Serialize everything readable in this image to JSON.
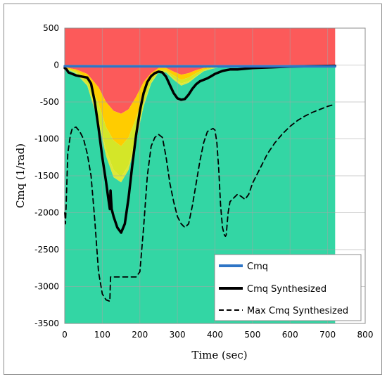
{
  "chart_data": {
    "type": "line",
    "xlabel": "Time (sec)",
    "ylabel": "Cmq (1/rad)",
    "xlim": [
      0,
      800
    ],
    "ylim": [
      -3500,
      500
    ],
    "xticks": [
      0,
      100,
      200,
      300,
      400,
      500,
      600,
      700,
      800
    ],
    "yticks": [
      500,
      0,
      -500,
      -1000,
      -1500,
      -2000,
      -2500,
      -3000,
      -3500
    ],
    "grid": true,
    "legend_position": "bottom-right",
    "background_bands": {
      "x": [
        0,
        10,
        30,
        60,
        90,
        110,
        130,
        150,
        170,
        190,
        210,
        230,
        250,
        270,
        290,
        310,
        330,
        350,
        370,
        390,
        410,
        430,
        450,
        500,
        600,
        720
      ],
      "colors": [
        "#fc5a5a",
        "#ffcc00",
        "#d4e628",
        "#dde83a",
        "#33d6a4"
      ],
      "boundaries": [
        [
          -20,
          -40,
          -60,
          -120,
          -300,
          -500,
          -620,
          -660,
          -600,
          -430,
          -230,
          -110,
          -40,
          -40,
          -90,
          -130,
          -110,
          -70,
          -40,
          -30,
          -20,
          -10,
          -8,
          -5,
          -3,
          -2
        ],
        [
          -25,
          -55,
          -80,
          -180,
          -520,
          -840,
          -1020,
          -1100,
          -980,
          -720,
          -400,
          -170,
          -70,
          -70,
          -140,
          -200,
          -170,
          -110,
          -60,
          -40,
          -25,
          -15,
          -10,
          -6,
          -4,
          -2
        ],
        [
          -30,
          -60,
          -100,
          -250,
          -720,
          -1150,
          -1420,
          -1520,
          -1360,
          -980,
          -540,
          -230,
          -90,
          -90,
          -180,
          -250,
          -220,
          -150,
          -80,
          -50,
          -30,
          -18,
          -12,
          -7,
          -4,
          -2
        ],
        [
          -35,
          -70,
          -115,
          -280,
          -780,
          -1230,
          -1520,
          -1590,
          -1420,
          -1030,
          -560,
          -250,
          -100,
          -100,
          -200,
          -280,
          -240,
          -160,
          -85,
          -55,
          -32,
          -20,
          -14,
          -8,
          -5,
          -3
        ]
      ]
    },
    "series": [
      {
        "name": "Cmq",
        "color": "#2e75c6",
        "style": "solid",
        "x": [
          0,
          100,
          200,
          300,
          400,
          500,
          600,
          720
        ],
        "y": [
          -15,
          -18,
          -18,
          -18,
          -18,
          -18,
          -18,
          -18
        ]
      },
      {
        "name": "Cmq Synthesized",
        "color": "#000000",
        "style": "solid",
        "x": [
          0,
          5,
          10,
          20,
          30,
          40,
          50,
          60,
          70,
          80,
          90,
          100,
          110,
          115,
          120,
          122,
          125,
          130,
          140,
          150,
          160,
          170,
          180,
          190,
          200,
          210,
          220,
          230,
          240,
          250,
          260,
          270,
          280,
          290,
          300,
          310,
          320,
          330,
          340,
          350,
          360,
          370,
          380,
          390,
          400,
          410,
          420,
          430,
          440,
          460,
          480,
          500,
          550,
          600,
          650,
          700,
          720
        ],
        "y": [
          -40,
          -60,
          -100,
          -120,
          -140,
          -150,
          -160,
          -170,
          -250,
          -500,
          -850,
          -1250,
          -1580,
          -1770,
          -1950,
          -1700,
          -1950,
          -2050,
          -2200,
          -2270,
          -2150,
          -1800,
          -1350,
          -950,
          -620,
          -380,
          -230,
          -150,
          -110,
          -90,
          -100,
          -160,
          -270,
          -380,
          -450,
          -470,
          -460,
          -400,
          -320,
          -260,
          -220,
          -200,
          -180,
          -150,
          -120,
          -100,
          -80,
          -70,
          -60,
          -60,
          -50,
          -40,
          -30,
          -20,
          -15,
          -12,
          -10
        ]
      },
      {
        "name": "Max Cmq Synthesized",
        "color": "#000000",
        "style": "dashed",
        "x": [
          0,
          2,
          5,
          8,
          15,
          20,
          30,
          40,
          50,
          60,
          70,
          80,
          90,
          100,
          110,
          120,
          122,
          125,
          130,
          140,
          150,
          160,
          170,
          180,
          190,
          200,
          210,
          220,
          230,
          240,
          250,
          260,
          270,
          280,
          290,
          300,
          310,
          320,
          330,
          340,
          350,
          360,
          370,
          380,
          390,
          395,
          400,
          405,
          410,
          415,
          420,
          425,
          428,
          430,
          435,
          440,
          450,
          460,
          470,
          480,
          490,
          500,
          520,
          540,
          560,
          580,
          600,
          620,
          640,
          660,
          680,
          700,
          720
        ],
        "y": [
          -2000,
          -2150,
          -1700,
          -1200,
          -950,
          -860,
          -840,
          -900,
          -1000,
          -1200,
          -1500,
          -2100,
          -2800,
          -3100,
          -3180,
          -3200,
          -2870,
          -2870,
          -2870,
          -2870,
          -2870,
          -2870,
          -2870,
          -2870,
          -2870,
          -2800,
          -2200,
          -1500,
          -1100,
          -980,
          -940,
          -980,
          -1250,
          -1600,
          -1850,
          -2050,
          -2150,
          -2200,
          -2150,
          -1900,
          -1600,
          -1300,
          -1050,
          -900,
          -870,
          -860,
          -880,
          -1050,
          -1400,
          -1900,
          -2200,
          -2300,
          -2320,
          -2300,
          -2000,
          -1850,
          -1800,
          -1750,
          -1780,
          -1820,
          -1750,
          -1600,
          -1400,
          -1200,
          -1050,
          -930,
          -830,
          -750,
          -690,
          -640,
          -600,
          -560,
          -530
        ]
      }
    ]
  }
}
